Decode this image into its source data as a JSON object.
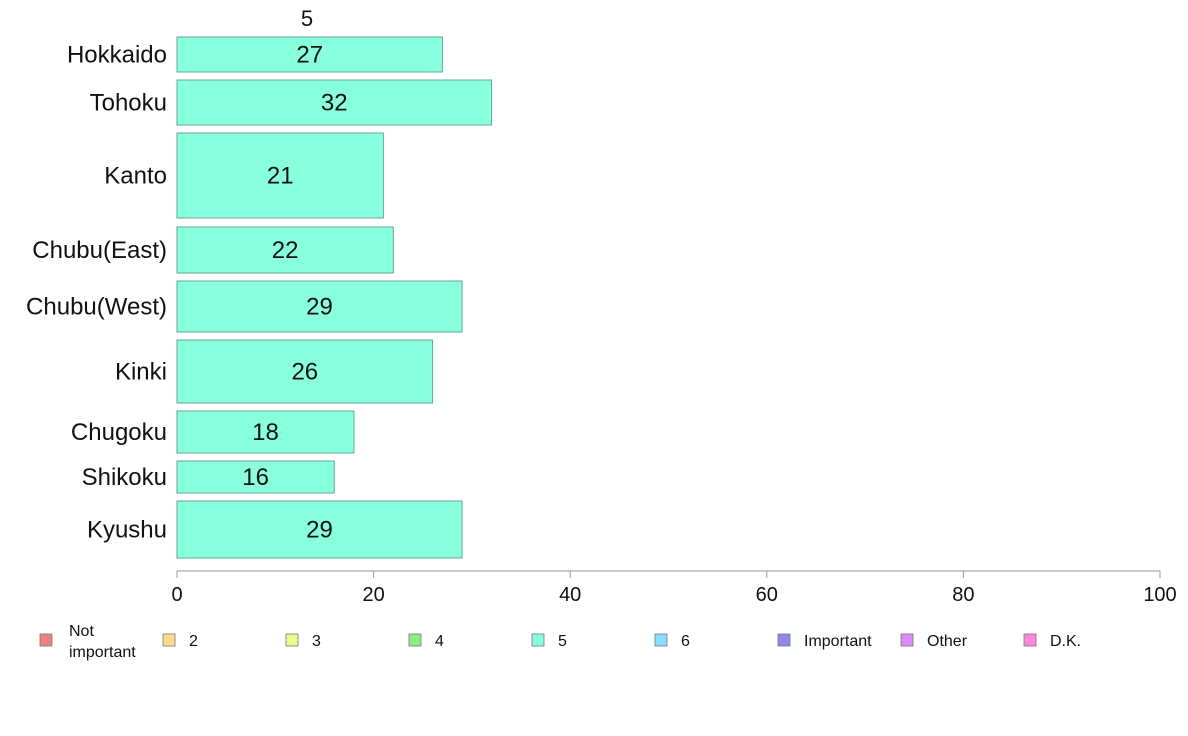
{
  "chart_data": {
    "type": "bar",
    "orientation": "horizontal",
    "stacked": true,
    "column_label": "5",
    "categories": [
      "Hokkaido",
      "Tohoku",
      "Kanto",
      "Chubu(East)",
      "Chubu(West)",
      "Kinki",
      "Chugoku",
      "Shikoku",
      "Kyushu"
    ],
    "series": [
      {
        "name": "5",
        "color": "#88ffdd",
        "values": [
          27,
          32,
          21,
          22,
          29,
          26,
          18,
          16,
          29
        ]
      }
    ],
    "xlim": [
      0,
      100
    ],
    "xticks": [
      0,
      20,
      40,
      60,
      80,
      100
    ],
    "grid": false,
    "legend": {
      "placement": "bottom",
      "items": [
        {
          "label": "Not important",
          "color": "#f08080"
        },
        {
          "label": "2",
          "color": "#ffd98a"
        },
        {
          "label": "3",
          "color": "#e6ff8a"
        },
        {
          "label": "4",
          "color": "#88ee88"
        },
        {
          "label": "5",
          "color": "#88ffdd"
        },
        {
          "label": "6",
          "color": "#88ddff"
        },
        {
          "label": "Important",
          "color": "#8888ee"
        },
        {
          "label": "Other",
          "color": "#dd88ff"
        },
        {
          "label": "D.K.",
          "color": "#ff88dd"
        }
      ]
    }
  }
}
